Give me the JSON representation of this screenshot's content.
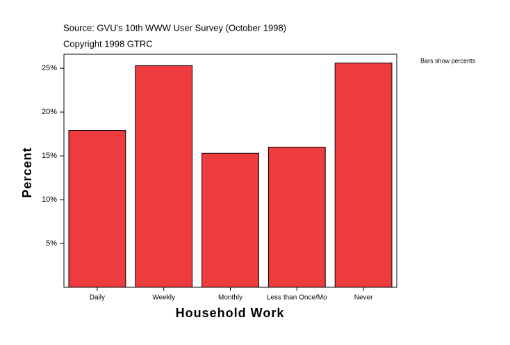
{
  "chart_data": {
    "type": "bar",
    "title": "Source: GVU's 10th WWW User Survey (October 1998)",
    "subtitle": "Copyright 1998 GTRC",
    "annotation": "Bars show percents",
    "xlabel": "Household Work",
    "ylabel": "Percent",
    "categories": [
      "Daily",
      "Weekly",
      "Monthly",
      "Less than Once/Mo",
      "Never"
    ],
    "values": [
      17.9,
      25.3,
      15.3,
      16.0,
      25.6
    ],
    "color": "#ee3b3e",
    "ylim": [
      0,
      26.6
    ],
    "yticks": [
      {
        "value": 5,
        "label": "5%"
      },
      {
        "value": 10,
        "label": "10%"
      },
      {
        "value": 15,
        "label": "15%"
      },
      {
        "value": 20,
        "label": "20%"
      },
      {
        "value": 25,
        "label": "25%"
      }
    ],
    "grid": false
  }
}
